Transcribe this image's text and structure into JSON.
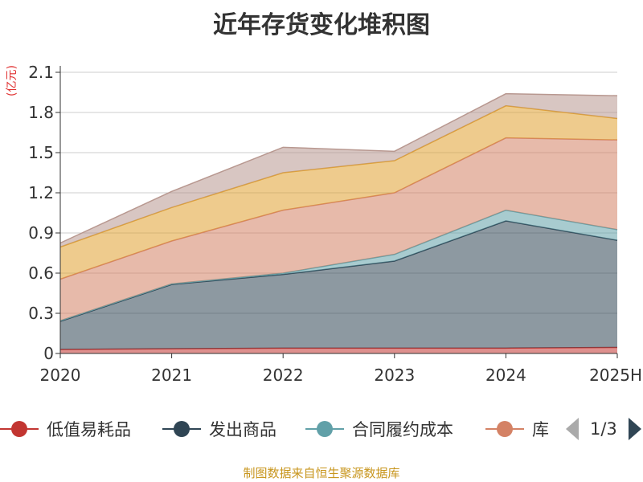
{
  "chart_data": {
    "type": "area",
    "stacked": true,
    "title": "近年存货变化堆积图",
    "unit": "(亿元)",
    "categories": [
      "2020",
      "2021",
      "2022",
      "2023",
      "2024",
      "2025H"
    ],
    "ylim": [
      0,
      2.1
    ],
    "yticks": [
      "0",
      "0.3",
      "0.6",
      "0.9",
      "1.2",
      "1.5",
      "1.8",
      "2.1"
    ],
    "grid": true,
    "series": [
      {
        "name": "低值易耗品",
        "color": "#c23531",
        "values": [
          0.03,
          0.035,
          0.04,
          0.04,
          0.04,
          0.045
        ]
      },
      {
        "name": "发出商品",
        "color": "#2f4554",
        "values": [
          0.21,
          0.48,
          0.55,
          0.65,
          0.95,
          0.8
        ]
      },
      {
        "name": "合同履约成本",
        "color": "#61a0a8",
        "values": [
          0.005,
          0.005,
          0.01,
          0.05,
          0.08,
          0.08
        ]
      },
      {
        "name": "库存商品",
        "color": "#d48265",
        "values": [
          0.31,
          0.32,
          0.47,
          0.46,
          0.54,
          0.67
        ]
      },
      {
        "name": "",
        "color": "#e0a030",
        "values": [
          0.24,
          0.25,
          0.28,
          0.24,
          0.24,
          0.16
        ]
      },
      {
        "name": "",
        "color": "#b89890",
        "values": [
          0.03,
          0.12,
          0.19,
          0.07,
          0.09,
          0.17
        ]
      }
    ],
    "legend_position": "bottom"
  },
  "legend": {
    "items": [
      {
        "label": "低值易耗品",
        "color": "#c23531"
      },
      {
        "label": "发出商品",
        "color": "#2f4554"
      },
      {
        "label": "合同履约成本",
        "color": "#61a0a8"
      },
      {
        "label": "库",
        "color": "#d48265"
      }
    ],
    "page": "1/3"
  },
  "source": "制图数据来自恒生聚源数据库"
}
